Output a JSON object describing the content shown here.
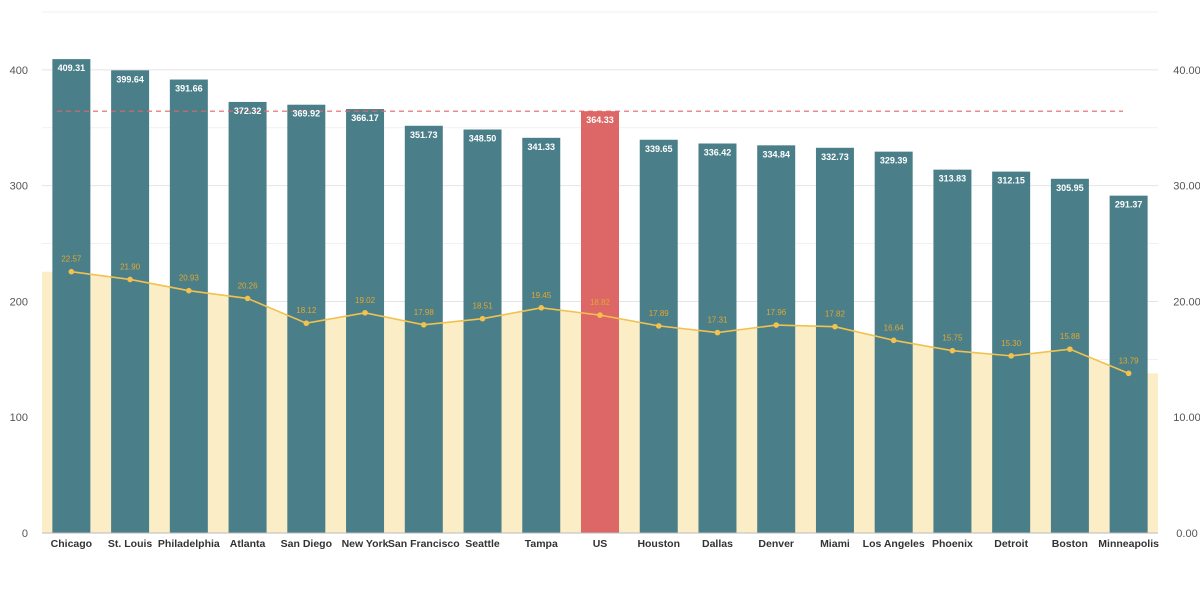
{
  "chart_data": {
    "type": "bar",
    "categories": [
      "Chicago",
      "St. Louis",
      "Philadelphia",
      "Atlanta",
      "San Diego",
      "New York",
      "San Francisco",
      "Seattle",
      "Tampa",
      "US",
      "Houston",
      "Dallas",
      "Denver",
      "Miami",
      "Los Angeles",
      "Phoenix",
      "Detroit",
      "Boston",
      "Minneapolis"
    ],
    "series": [
      {
        "type": "bar",
        "axis": "left",
        "values": [
          409.31,
          399.64,
          391.66,
          372.32,
          369.92,
          366.17,
          351.73,
          348.5,
          341.33,
          364.33,
          339.65,
          336.42,
          334.84,
          332.73,
          329.39,
          313.83,
          312.15,
          305.95,
          291.37
        ],
        "value_labels": [
          "409.31",
          "399.64",
          "391.66",
          "372.32",
          "369.92",
          "366.17",
          "351.73",
          "348.50",
          "341.33",
          "364.33",
          "339.65",
          "336.42",
          "334.84",
          "332.73",
          "329.39",
          "313.83",
          "312.15",
          "305.95",
          "291.37"
        ],
        "color": "#4a7f8a",
        "highlight_index": 9,
        "highlight_color": "#dd6666"
      },
      {
        "type": "area-line",
        "axis": "right",
        "values": [
          22.57,
          21.9,
          20.93,
          20.26,
          18.12,
          19.02,
          17.98,
          18.51,
          19.45,
          18.82,
          17.89,
          17.31,
          17.96,
          17.82,
          16.64,
          15.75,
          15.3,
          15.88,
          13.79
        ],
        "value_labels": [
          "22.57",
          "21.90",
          "20.93",
          "20.26",
          "18.12",
          "19.02",
          "17.98",
          "18.51",
          "19.45",
          "18.82",
          "17.89",
          "17.31",
          "17.96",
          "17.82",
          "16.64",
          "15.75",
          "15.30",
          "15.88",
          "13.79"
        ],
        "line_color": "#f2c14e",
        "fill_color": "#fbeec7"
      }
    ],
    "reference_line": {
      "axis": "left",
      "value": 364.33,
      "color": "#e06666",
      "style": "dashed"
    },
    "y_left": {
      "lim": [
        0,
        450
      ],
      "ticks": [
        0,
        100,
        200,
        300,
        400
      ],
      "tick_labels": [
        "0",
        "100",
        "200",
        "300",
        "400"
      ]
    },
    "y_right": {
      "lim": [
        0,
        45
      ],
      "ticks": [
        0,
        10,
        20,
        30,
        40
      ],
      "tick_labels": [
        "0.00",
        "10.00",
        "20.00",
        "30.00",
        "40.00"
      ]
    },
    "grid": true,
    "legend": "none",
    "title": "",
    "xlabel": "",
    "ylabel": ""
  }
}
